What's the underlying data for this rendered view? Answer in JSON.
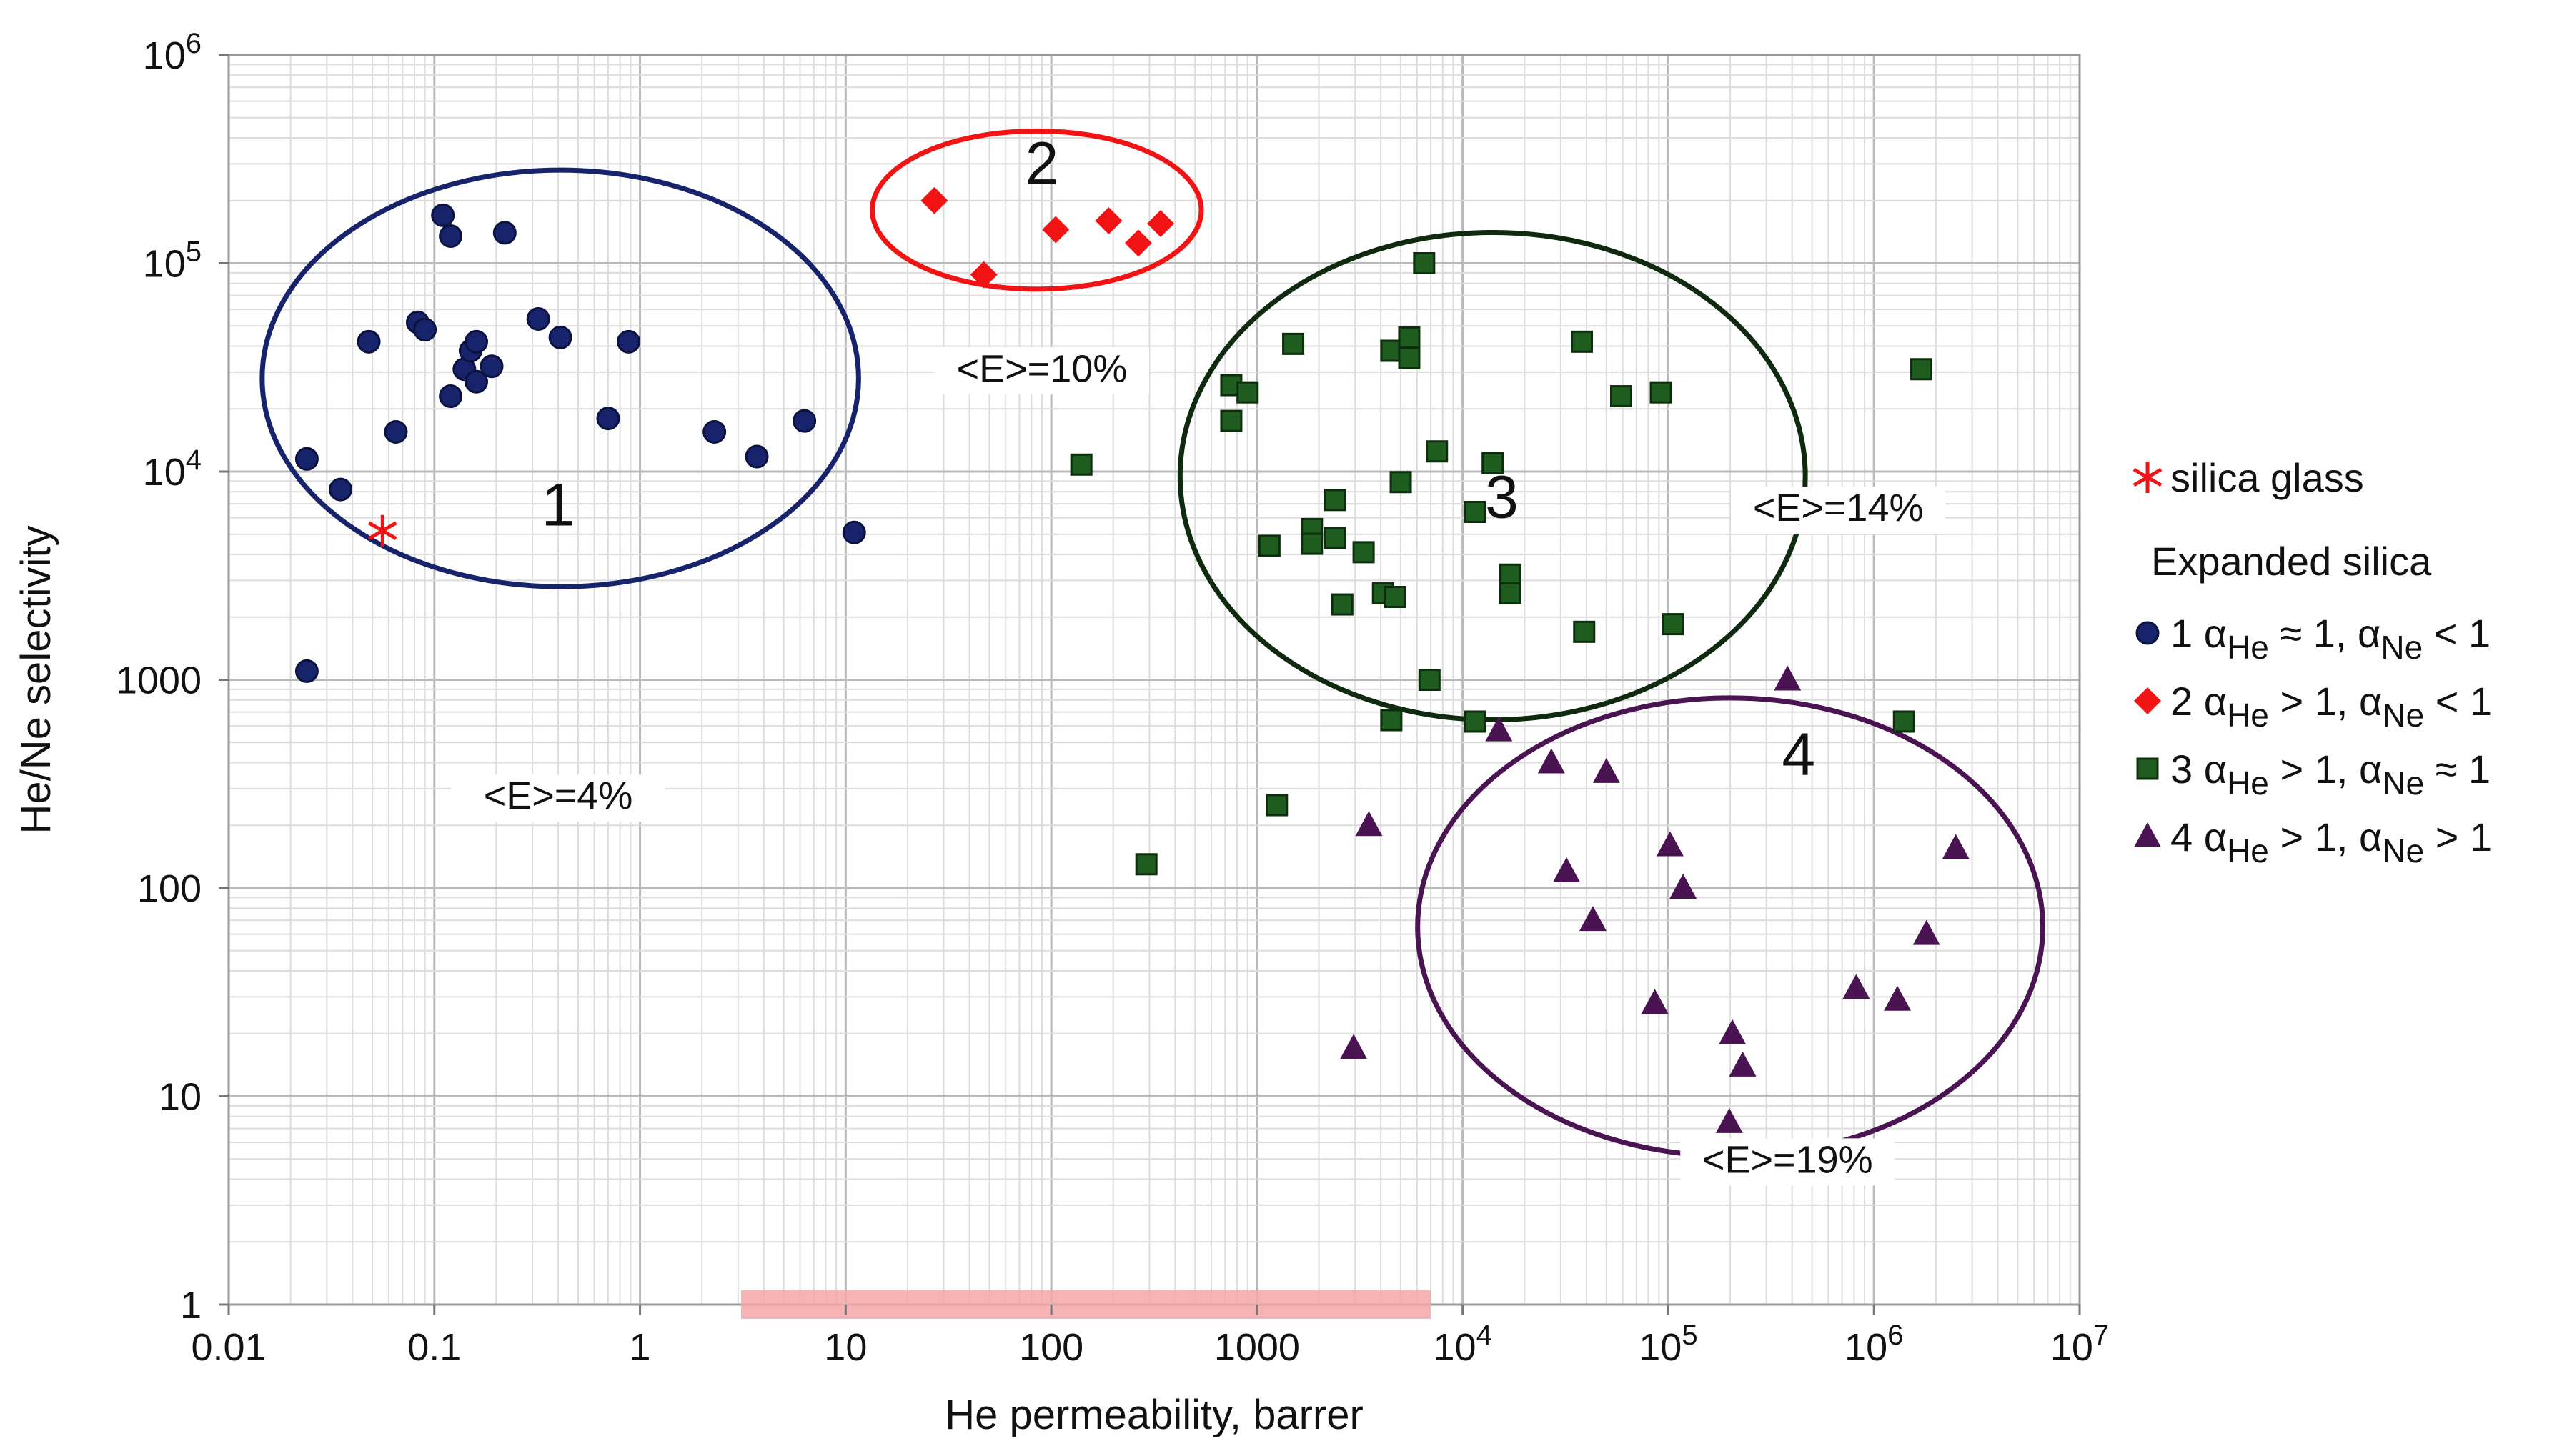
{
  "chart_data": {
    "type": "scatter",
    "xscale": "log",
    "yscale": "log",
    "xlim": [
      0.01,
      10000000
    ],
    "ylim": [
      1,
      1000000
    ],
    "xlabel": "He permeability, barrer",
    "ylabel": "He/Ne selectivity",
    "x_ticks": [
      {
        "v": 0.01,
        "t": "0.01"
      },
      {
        "v": 0.1,
        "t": "0.1"
      },
      {
        "v": 1,
        "t": "1"
      },
      {
        "v": 10,
        "t": "10"
      },
      {
        "v": 100,
        "t": "100"
      },
      {
        "v": 1000,
        "t": "1000"
      },
      {
        "v": 10000,
        "t": "10",
        "sup": "4"
      },
      {
        "v": 100000,
        "t": "10",
        "sup": "5"
      },
      {
        "v": 1000000,
        "t": "10",
        "sup": "6"
      },
      {
        "v": 10000000,
        "t": "10",
        "sup": "7"
      }
    ],
    "y_ticks": [
      {
        "v": 1,
        "t": "1"
      },
      {
        "v": 10,
        "t": "10"
      },
      {
        "v": 100,
        "t": "100"
      },
      {
        "v": 1000,
        "t": "1000"
      },
      {
        "v": 10000,
        "t": "10",
        "sup": "4"
      },
      {
        "v": 100000,
        "t": "10",
        "sup": "5"
      },
      {
        "v": 1000000,
        "t": "10",
        "sup": "6"
      }
    ],
    "grid": true,
    "highlight_band": {
      "x_from": 3.1,
      "x_to": 7000,
      "color": "#f4a6a6"
    },
    "series": [
      {
        "name": "1",
        "marker": "circle",
        "color": "#17246b",
        "points": [
          [
            0.11,
            170000
          ],
          [
            0.12,
            135000
          ],
          [
            0.22,
            140000
          ],
          [
            0.048,
            42000
          ],
          [
            0.083,
            52000
          ],
          [
            0.09,
            48000
          ],
          [
            0.14,
            31000
          ],
          [
            0.15,
            38000
          ],
          [
            0.16,
            42000
          ],
          [
            0.16,
            27000
          ],
          [
            0.19,
            32000
          ],
          [
            0.12,
            23000
          ],
          [
            0.32,
            54000
          ],
          [
            0.41,
            44000
          ],
          [
            0.88,
            42000
          ],
          [
            0.024,
            11500
          ],
          [
            0.065,
            15500
          ],
          [
            0.035,
            8200
          ],
          [
            0.7,
            18000
          ],
          [
            2.3,
            15500
          ],
          [
            3.7,
            11800
          ],
          [
            6.3,
            17500
          ],
          [
            11,
            5100
          ],
          [
            0.024,
            1100
          ]
        ]
      },
      {
        "name": "2",
        "marker": "diamond",
        "color": "#f21414",
        "points": [
          [
            27,
            200000
          ],
          [
            47,
            88000
          ],
          [
            105,
            145000
          ],
          [
            190,
            160000
          ],
          [
            265,
            125000
          ],
          [
            340,
            155000
          ]
        ]
      },
      {
        "name": "3",
        "marker": "square",
        "color": "#1f5c1f",
        "points": [
          [
            6500,
            100000
          ],
          [
            1500,
            41000
          ],
          [
            4500,
            38000
          ],
          [
            5500,
            44000
          ],
          [
            5500,
            35000
          ],
          [
            38000,
            42000
          ],
          [
            59000,
            23000
          ],
          [
            92000,
            24000
          ],
          [
            1700000,
            31000
          ],
          [
            750,
            26000
          ],
          [
            900,
            24000
          ],
          [
            750,
            17500
          ],
          [
            140,
            10800
          ],
          [
            7500,
            12500
          ],
          [
            14000,
            11000
          ],
          [
            2400,
            7300
          ],
          [
            5000,
            8900
          ],
          [
            11500,
            6400
          ],
          [
            1850,
            5300
          ],
          [
            2400,
            4800
          ],
          [
            1850,
            4500
          ],
          [
            1150,
            4400
          ],
          [
            3300,
            4100
          ],
          [
            17000,
            3200
          ],
          [
            17000,
            2600
          ],
          [
            4100,
            2600
          ],
          [
            4700,
            2500
          ],
          [
            2600,
            2300
          ],
          [
            39000,
            1700
          ],
          [
            105000,
            1850
          ],
          [
            6900,
            1000
          ],
          [
            4500,
            640
          ],
          [
            11500,
            630
          ],
          [
            1400000,
            630
          ],
          [
            1250,
            250
          ],
          [
            290,
            130
          ]
        ]
      },
      {
        "name": "4",
        "marker": "triangle",
        "color": "#4a1351",
        "points": [
          [
            380000,
            1000
          ],
          [
            15000,
            570
          ],
          [
            27000,
            400
          ],
          [
            50000,
            360
          ],
          [
            3500,
            200
          ],
          [
            32000,
            120
          ],
          [
            102000,
            160
          ],
          [
            118000,
            100
          ],
          [
            2500000,
            155
          ],
          [
            43000,
            70
          ],
          [
            1800000,
            60
          ],
          [
            86000,
            28
          ],
          [
            820000,
            33
          ],
          [
            1300000,
            29
          ],
          [
            205000,
            20
          ],
          [
            230000,
            14
          ],
          [
            198000,
            7.5
          ],
          [
            2950,
            17
          ]
        ]
      },
      {
        "name": "silica glass",
        "marker": "star",
        "color": "#f21414",
        "points": [
          [
            0.056,
            5200
          ]
        ]
      }
    ],
    "clusters": [
      {
        "id": "1",
        "label_x": 0.4,
        "label_y": 5500,
        "err": "<E>=4%",
        "err_x": 0.4,
        "err_y": 240,
        "cx": 0.41,
        "cy": 28000,
        "rx_dec": 1.45,
        "ry_dec": 1.0,
        "color": "#17246b"
      },
      {
        "id": "2",
        "label_x": 90,
        "label_y": 240000,
        "err": "<E>=10%",
        "err_x": 90,
        "err_y": 27000,
        "cx": 85,
        "cy": 180000,
        "rx_dec": 0.8,
        "ry_dec": 0.38,
        "color": "#f21414"
      },
      {
        "id": "3",
        "label_x": 15500,
        "label_y": 6000,
        "err": "<E>=14%",
        "err_x": 670000,
        "err_y": 5800,
        "cx": 14000,
        "cy": 9500,
        "rx_dec": 1.52,
        "ry_dec": 1.17,
        "color": "#0f2a0f"
      },
      {
        "id": "4",
        "label_x": 430000,
        "label_y": 350,
        "err": "<E>=19%",
        "err_x": 380000,
        "err_y": 4.3,
        "cx": 200000,
        "cy": 65,
        "rx_dec": 1.52,
        "ry_dec": 1.1,
        "color": "#4a1351"
      }
    ]
  },
  "legend": {
    "silica_glass": "silica glass",
    "header": "Expanded silica",
    "items": [
      {
        "num": "1",
        "he_rel": "≈ 1,",
        "ne_rel": "< 1",
        "marker": "circle",
        "color": "#17246b"
      },
      {
        "num": "2",
        "he_rel": "> 1,",
        "ne_rel": "< 1",
        "marker": "diamond",
        "color": "#f21414"
      },
      {
        "num": "3",
        "he_rel": "> 1,",
        "ne_rel": "≈ 1",
        "marker": "square",
        "color": "#1f5c1f"
      },
      {
        "num": "4",
        "he_rel": "> 1,",
        "ne_rel": "> 1",
        "marker": "triangle",
        "color": "#4a1351"
      }
    ],
    "alpha": "α",
    "he_sub": "He",
    "ne_sub": "Ne"
  }
}
